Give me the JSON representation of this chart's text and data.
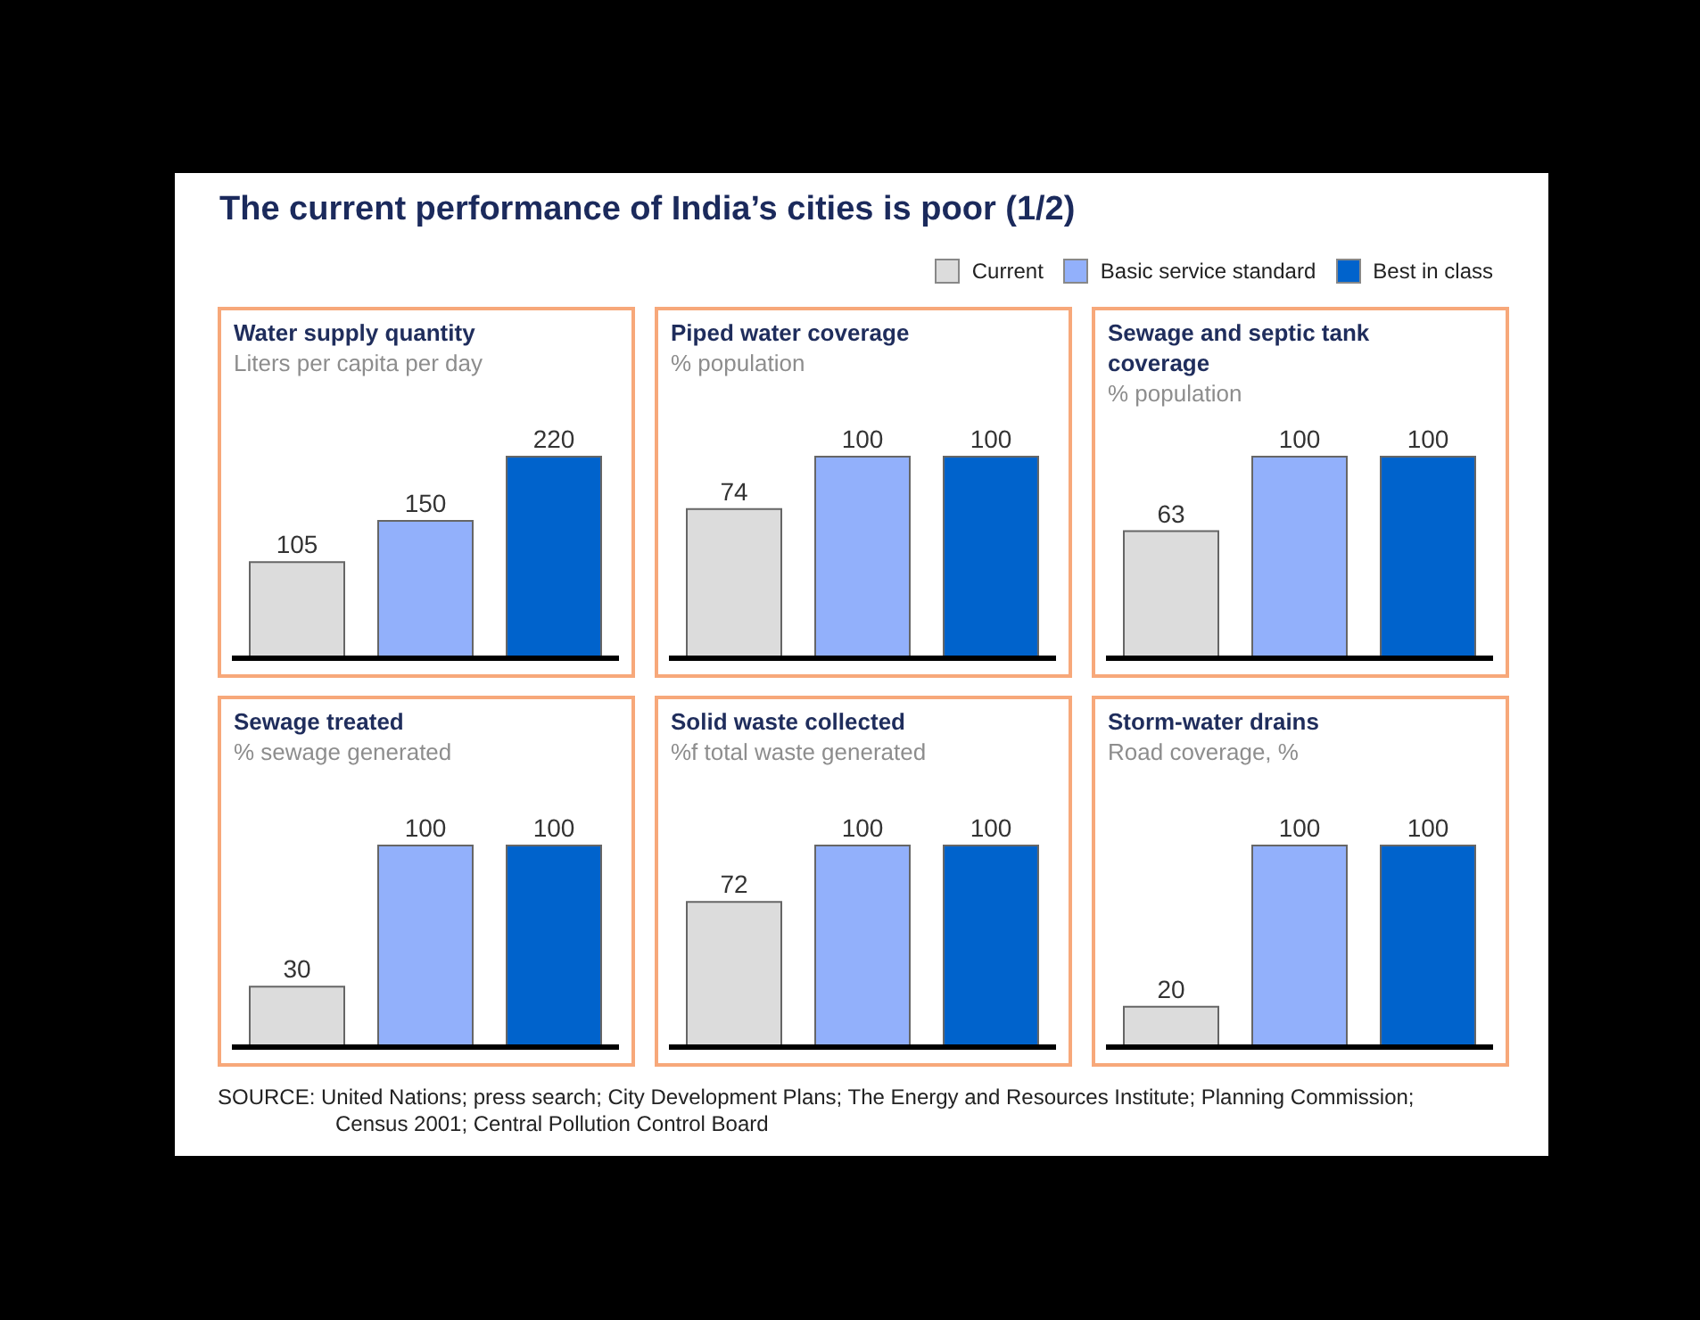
{
  "chart_data": [
    {
      "type": "other",
      "title": "The current performance of India’s cities is poor (1/2)",
      "annotations": [
        "SOURCE: United Nations; press search; City Development Plans; The Energy and Resources Institute; Planning Commission; Census 2001; Central Pollution Control Board"
      ]
    },
    {
      "type": "bar",
      "title": "Water supply quantity",
      "subtitle": "Liters per capita per day",
      "categories": [
        null
      ],
      "series": [
        {
          "color": "#dcdcdc",
          "values": [
            105
          ]
        },
        {
          "color": "#92b0fb",
          "values": [
            150
          ]
        },
        {
          "color": "#0063cc",
          "values": [
            220
          ]
        }
      ],
      "data_labels": true
    },
    {
      "type": "bar",
      "title": "Piped water coverage",
      "subtitle": "% population",
      "categories": [
        null
      ],
      "series": [
        {
          "name": "Current",
          "color": "#dcdcdc",
          "values": [
            74
          ]
        },
        {
          "name": "Basic service standard",
          "color": "#92b0fb",
          "values": [
            100
          ]
        },
        {
          "name": "Best in class",
          "color": "#0063cc",
          "values": [
            100
          ]
        }
      ],
      "data_labels": true,
      "legend": "top right"
    },
    {
      "type": "bar",
      "title": "Sewage and septic tank coverage",
      "subtitle": "% population",
      "categories": [
        null
      ],
      "series": [
        {
          "color": "#dcdcdc",
          "values": [
            63
          ]
        },
        {
          "color": "#92b0fb",
          "values": [
            100
          ]
        },
        {
          "color": "#0063cc",
          "values": [
            100
          ]
        }
      ],
      "data_labels": true
    },
    {
      "type": "bar",
      "title": "Sewage treated",
      "subtitle": "% sewage generated",
      "categories": [
        null
      ],
      "series": [
        {
          "color": "#dcdcdc",
          "values": [
            30
          ]
        },
        {
          "color": "#92b0fb",
          "values": [
            100
          ]
        },
        {
          "color": "#0063cc",
          "values": [
            100
          ]
        }
      ],
      "data_labels": true
    },
    {
      "type": "bar",
      "title": "Solid waste collected",
      "subtitle": "%f total waste generated",
      "categories": [
        null
      ],
      "series": [
        {
          "color": "#dcdcdc",
          "values": [
            72
          ]
        },
        {
          "color": "#92b0fb",
          "values": [
            100
          ]
        },
        {
          "color": "#0063cc",
          "values": [
            100
          ]
        }
      ],
      "data_labels": true
    },
    {
      "type": "bar",
      "title": "Storm-water drains",
      "subtitle": "Road coverage, %",
      "categories": [
        null
      ],
      "series": [
        {
          "color": "#dcdcdc",
          "values": [
            20
          ]
        },
        {
          "color": "#92b0fb",
          "values": [
            100
          ]
        },
        {
          "color": "#0063cc",
          "values": [
            100
          ]
        }
      ],
      "data_labels": true
    }
  ]
}
